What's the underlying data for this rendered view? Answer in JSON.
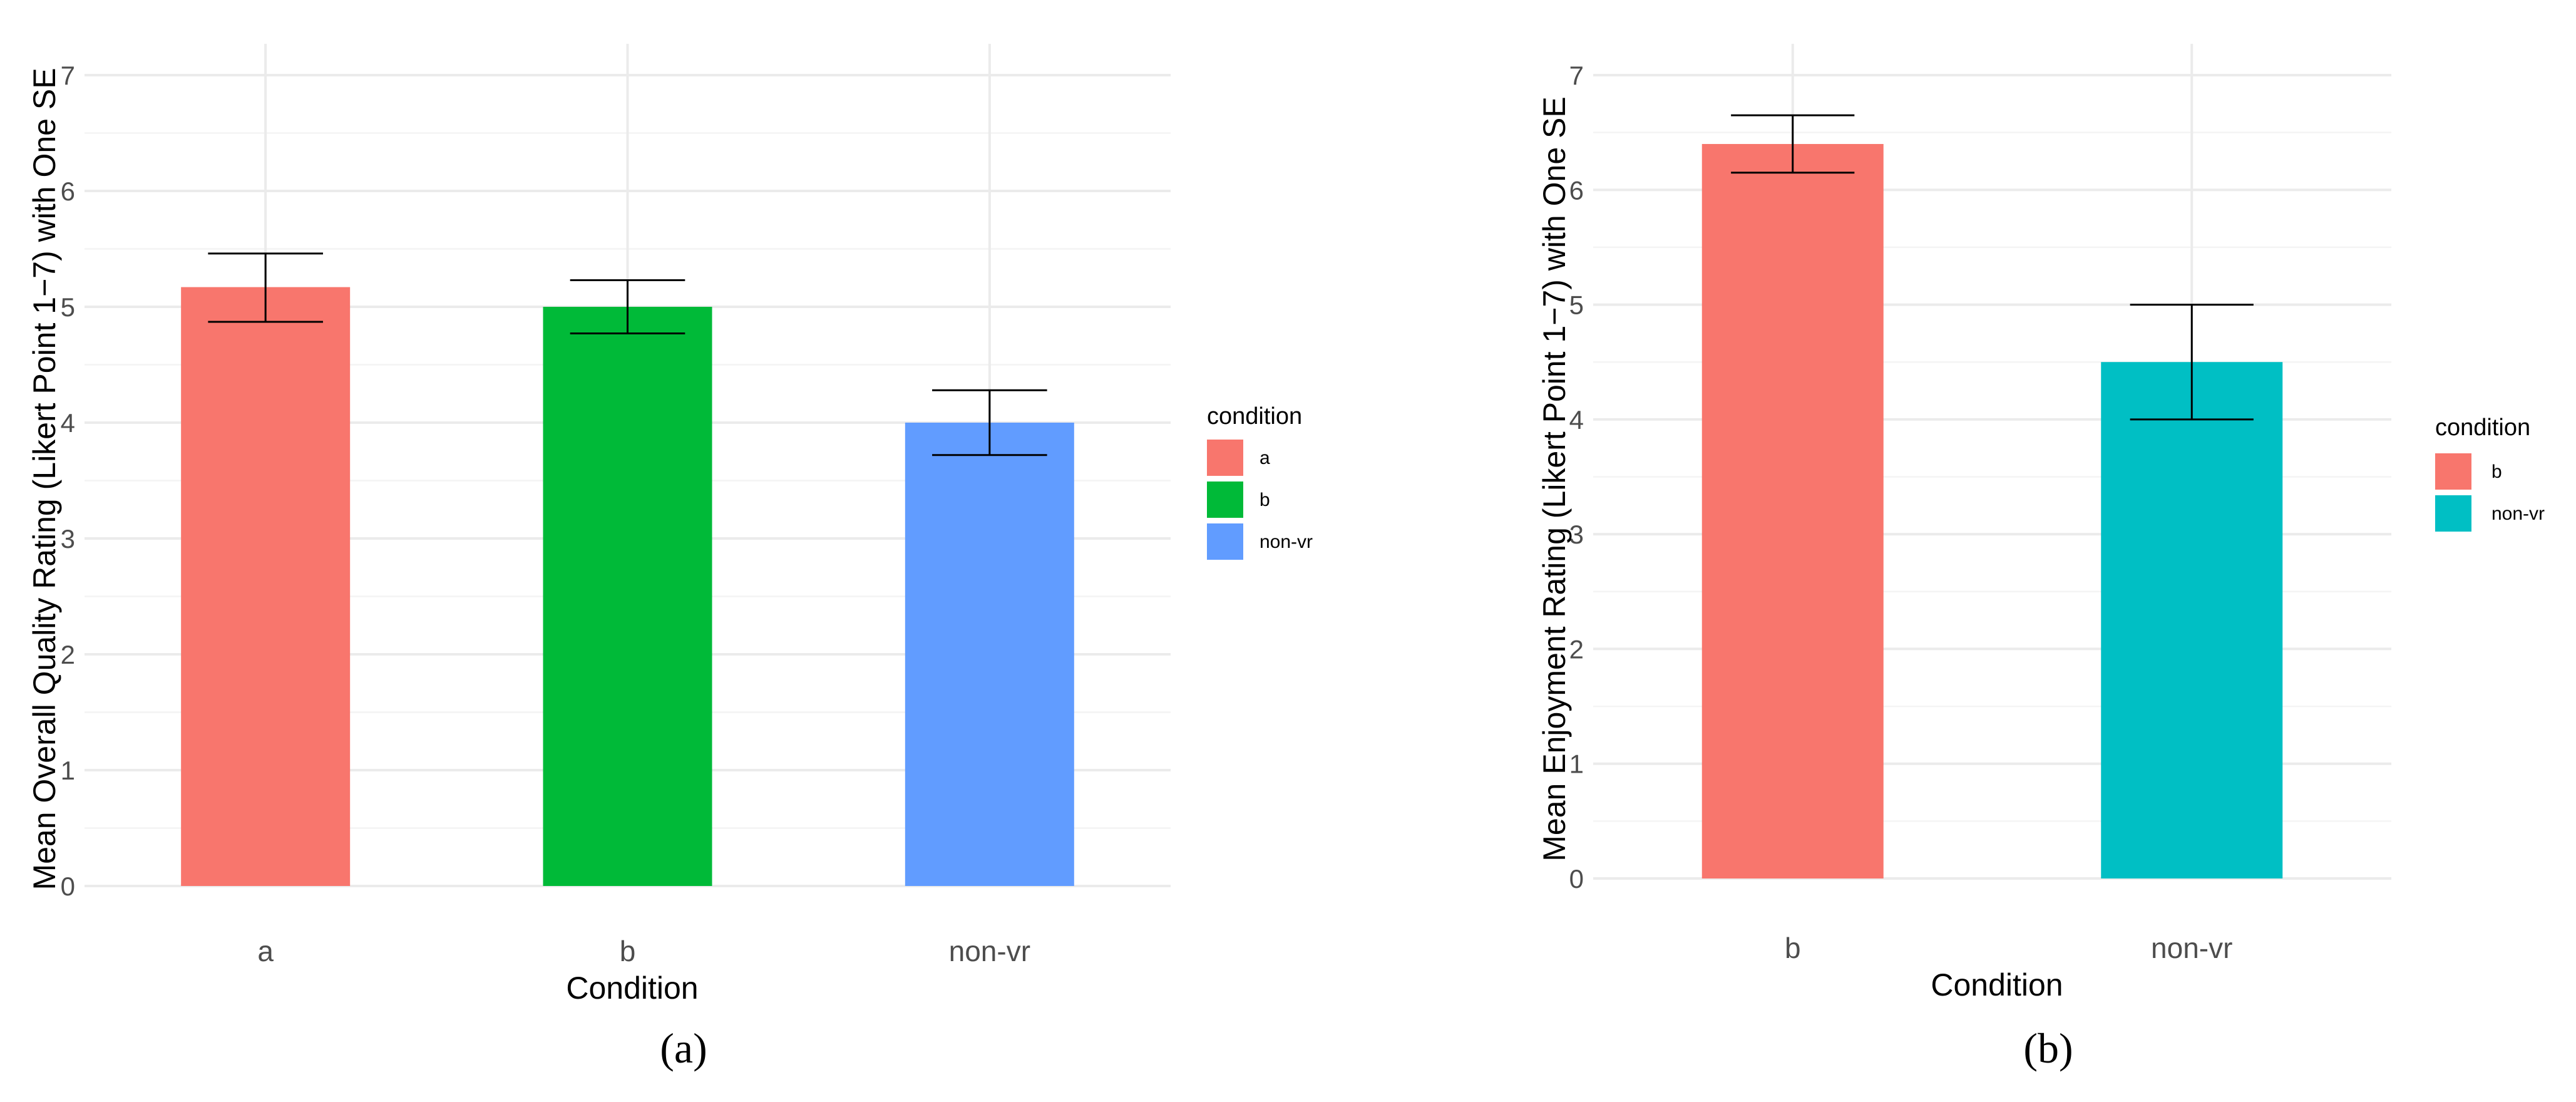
{
  "colors": {
    "a": "#F8766D",
    "b_green": "#00BA38",
    "non_vr_blue": "#619CFF",
    "non_vr_teal": "#00BFC4"
  },
  "chart_data": [
    {
      "type": "bar",
      "panel_label": "(a)",
      "categories": [
        "a",
        "b",
        "non-vr"
      ],
      "values": [
        5.17,
        5.0,
        4.0
      ],
      "error_low": [
        4.87,
        4.77,
        3.72
      ],
      "error_high": [
        5.46,
        5.23,
        4.28
      ],
      "colors": [
        "#F8766D",
        "#00BA38",
        "#619CFF"
      ],
      "xlabel": "Condition",
      "ylabel": "Mean Overall Quality Rating (Likert Point 1−7) with One SE",
      "ylim": [
        0,
        7
      ],
      "yticks": [
        "0",
        "1",
        "2",
        "3",
        "4",
        "5",
        "6",
        "7"
      ],
      "grid": true,
      "legend": {
        "title": "condition",
        "position": "right",
        "entries": [
          "a",
          "b",
          "non-vr"
        ]
      }
    },
    {
      "type": "bar",
      "panel_label": "(b)",
      "categories": [
        "b",
        "non-vr"
      ],
      "values": [
        6.4,
        4.5
      ],
      "error_low": [
        6.15,
        4.0
      ],
      "error_high": [
        6.65,
        5.0
      ],
      "colors": [
        "#F8766D",
        "#00BFC4"
      ],
      "xlabel": "Condition",
      "ylabel": "Mean Enjoyment Rating (Likert Point 1−7) with One SE",
      "ylim": [
        0,
        7
      ],
      "yticks": [
        "0",
        "1",
        "2",
        "3",
        "4",
        "5",
        "6",
        "7"
      ],
      "grid": true,
      "legend": {
        "title": "condition",
        "position": "right",
        "entries": [
          "b",
          "non-vr"
        ]
      }
    }
  ]
}
